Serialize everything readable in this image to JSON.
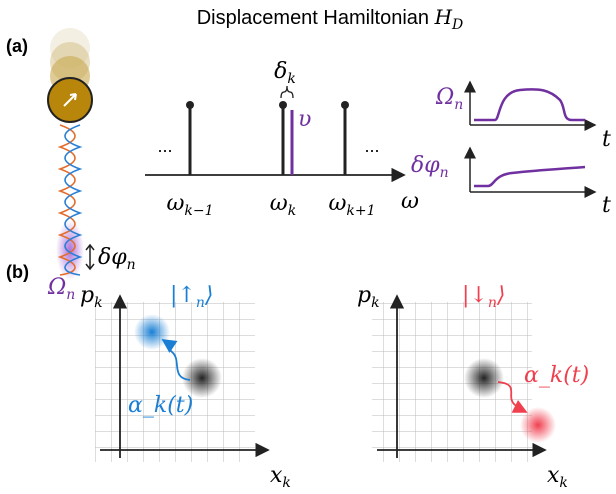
{
  "header": {
    "title": "Displacement Hamiltonian",
    "title_symbol": "H",
    "title_sub": "D"
  },
  "panel_a": {
    "label": "(a)",
    "ion": {
      "rabi": {
        "symbol": "Ω",
        "sub": "n"
      },
      "phase": {
        "symbol": "δφ",
        "sub": "n"
      }
    },
    "spectrum": {
      "left_dots": "...",
      "right_dots": "...",
      "ticks": [
        {
          "symbol": "ω",
          "sub": "k−1"
        },
        {
          "symbol": "ω",
          "sub": "k"
        },
        {
          "symbol": "ω",
          "sub": "k+1"
        }
      ],
      "axis": "ω",
      "detuning": {
        "symbol": "δ",
        "sub": "k"
      },
      "drive": "υ"
    },
    "pulses": {
      "top": {
        "symbol": "Ω",
        "sub": "n",
        "axis": "t"
      },
      "bottom": {
        "symbol": "δφ",
        "sub": "n",
        "axis": "t"
      }
    }
  },
  "panel_b": {
    "label": "(b)",
    "left": {
      "y_axis": {
        "symbol": "p",
        "sub": "k"
      },
      "x_axis": {
        "symbol": "x",
        "sub": "k"
      },
      "state": {
        "open": "|↑",
        "sub": "n",
        "close": "⟩"
      },
      "path": "α_k(t)"
    },
    "right": {
      "y_axis": {
        "symbol": "p",
        "sub": "k"
      },
      "x_axis": {
        "symbol": "x",
        "sub": "k"
      },
      "state": {
        "open": "|↓",
        "sub": "n",
        "close": "⟩"
      },
      "path": "α_k(t)"
    }
  }
}
